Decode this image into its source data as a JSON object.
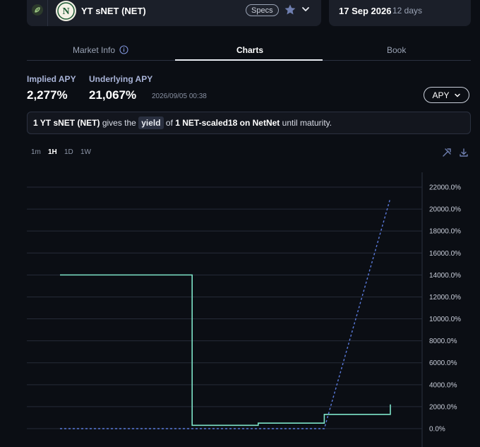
{
  "header": {
    "token_name": "YT sNET (NET)",
    "specs_label": "Specs",
    "maturity_date": "17 Sep 2026",
    "days_left": "12 days",
    "logo_letter": "N"
  },
  "tabs": [
    {
      "label": "Market Info"
    },
    {
      "label": "Charts"
    },
    {
      "label": "Book"
    }
  ],
  "stats": {
    "implied_label": "Implied APY",
    "implied_value": "2,277%",
    "underlying_label": "Underlying APY",
    "underlying_value": "21,067%",
    "timestamp": "2026/09/05 00:38",
    "apy_select": "APY"
  },
  "description": {
    "amount": "1 YT sNET (NET)",
    "gives_the": "gives the",
    "yield_word": "yield",
    "of_word": "of",
    "asset": "1 NET-scaled18 on NetNet",
    "tail": "until maturity."
  },
  "timeframes": [
    "1m",
    "1H",
    "1D",
    "1W"
  ],
  "icons": {
    "leaf": "leaf-icon",
    "star": "star-icon",
    "chevron": "chevron-down-icon",
    "info": "info-icon",
    "tools": "tools-icon",
    "download": "download-icon"
  },
  "colors": {
    "implied_line": "#7de3c8",
    "underlying_line": "#5b7bdc",
    "background": "#0b0e14"
  },
  "chart_data": {
    "type": "line",
    "y_tick_labels": [
      "0.0%",
      "2000.0%",
      "4000.0%",
      "6000.0%",
      "8000.0%",
      "10000.0%",
      "12000.0%",
      "14000.0%",
      "16000.0%",
      "18000.0%",
      "20000.0%",
      "22000.0%"
    ],
    "ylim": [
      0,
      22000
    ],
    "x_range": [
      0,
      100
    ],
    "grid": true,
    "series": [
      {
        "style": "solid",
        "points": [
          [
            0,
            14000
          ],
          [
            40,
            14000
          ],
          [
            40,
            300
          ],
          [
            60,
            300
          ],
          [
            60,
            500
          ],
          [
            80,
            500
          ],
          [
            80,
            1300
          ],
          [
            100,
            1300
          ],
          [
            100,
            2200
          ]
        ]
      },
      {
        "style": "dashed",
        "points": [
          [
            0,
            0
          ],
          [
            80,
            0
          ],
          [
            100,
            21000
          ]
        ]
      }
    ]
  }
}
